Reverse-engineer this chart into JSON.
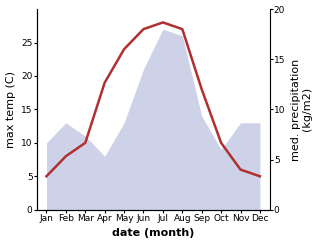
{
  "months": [
    "Jan",
    "Feb",
    "Mar",
    "Apr",
    "May",
    "Jun",
    "Jul",
    "Aug",
    "Sep",
    "Oct",
    "Nov",
    "Dec"
  ],
  "x_positions": [
    0,
    1,
    2,
    3,
    4,
    5,
    6,
    7,
    8,
    9,
    10,
    11
  ],
  "temperature": [
    5,
    8,
    10,
    19,
    24,
    27,
    28,
    27,
    18,
    10,
    6,
    5
  ],
  "precipitation_mm": [
    10,
    13,
    11,
    8,
    13,
    21,
    27,
    26,
    14,
    9,
    13,
    13
  ],
  "temp_color": "#b03030",
  "precip_fill_color": "#b8c0e0",
  "precip_fill_alpha": 0.7,
  "left_ylim": [
    0,
    30
  ],
  "left_yticks": [
    0,
    5,
    10,
    15,
    20,
    25
  ],
  "right_ylim": [
    0,
    20
  ],
  "right_yticks": [
    0,
    5,
    10,
    15,
    20
  ],
  "xlim": [
    -0.5,
    11.5
  ],
  "xlabel": "date (month)",
  "ylabel_left": "max temp (C)",
  "ylabel_right": "med. precipitation\n(kg/m2)",
  "temp_linewidth": 1.8,
  "tick_fontsize": 6.5,
  "label_fontsize": 8,
  "xlabel_fontsize": 8
}
